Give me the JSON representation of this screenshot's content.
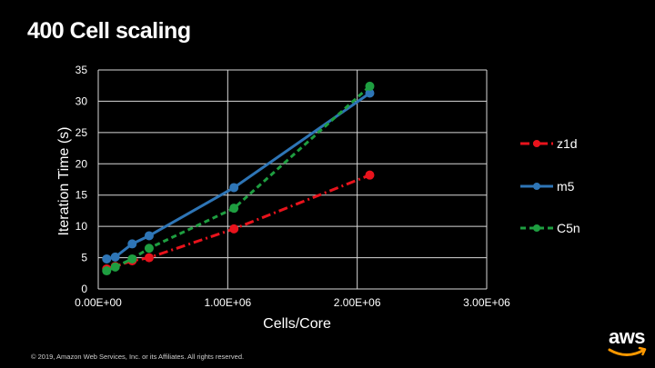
{
  "page": {
    "title": "400 Cell scaling",
    "footer": "© 2019, Amazon Web Services, Inc. or its Affiliates. All rights reserved.",
    "logo_text": "aws",
    "logo_accent_color": "#ff9900"
  },
  "chart_data": {
    "type": "line",
    "title": "",
    "xlabel": "Cells/Core",
    "ylabel": "Iteration Time (s)",
    "xlim": [
      0,
      3000000
    ],
    "ylim": [
      0,
      35
    ],
    "xticks": [
      0,
      1000000,
      2000000,
      3000000
    ],
    "xtick_labels": [
      "0.00E+00",
      "1.00E+06",
      "2.00E+06",
      "3.00E+06"
    ],
    "yticks": [
      0,
      5,
      10,
      15,
      20,
      25,
      30,
      35
    ],
    "ytick_labels": [
      "0",
      "5",
      "10",
      "15",
      "20",
      "25",
      "30",
      "35"
    ],
    "grid": true,
    "legend_position": "right",
    "series": [
      {
        "name": "z1d",
        "color": "#e8131c",
        "dash": "dashdot",
        "marker": "circle",
        "x": [
          65000,
          131000,
          262000,
          393000,
          1048000,
          2097000
        ],
        "y": [
          3.2,
          3.6,
          4.5,
          5.0,
          9.6,
          18.2
        ]
      },
      {
        "name": "m5",
        "color": "#2e75b6",
        "dash": "solid",
        "marker": "circle",
        "x": [
          65000,
          131000,
          262000,
          393000,
          1048000,
          2097000
        ],
        "y": [
          4.8,
          5.1,
          7.2,
          8.5,
          16.2,
          31.3
        ]
      },
      {
        "name": "C5n",
        "color": "#1e9e40",
        "dash": "dash",
        "marker": "circle",
        "x": [
          65000,
          131000,
          262000,
          393000,
          1048000,
          2097000
        ],
        "y": [
          2.9,
          3.5,
          4.8,
          6.5,
          12.9,
          32.4
        ]
      }
    ]
  }
}
